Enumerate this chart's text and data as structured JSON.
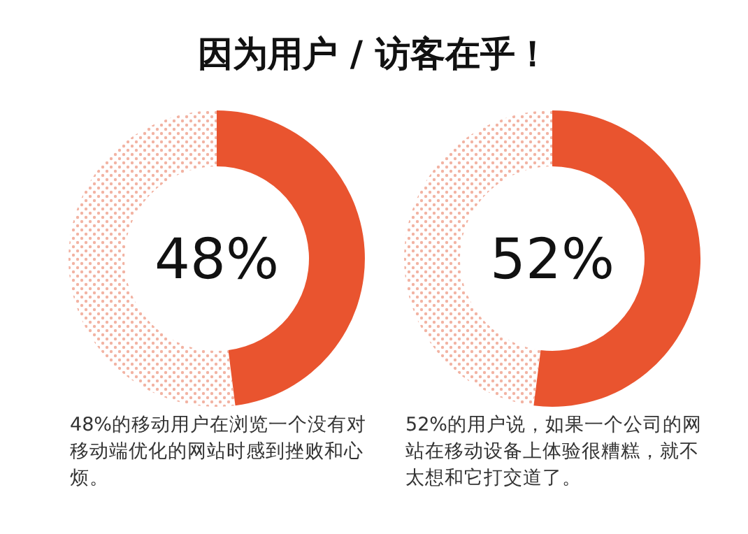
{
  "chart_data": [
    {
      "type": "donut",
      "title": "因为用户 / 访客在乎！",
      "categories": [
        null,
        null
      ],
      "values": [
        48,
        52
      ],
      "colors": [
        "#e9542f",
        "#f2b3a3"
      ],
      "value_labels": [
        "48%",
        null
      ],
      "annotations": [
        "48%的移动用户在浏览一个没有对移动端优化的网站时感到挫败和心烦。"
      ]
    },
    {
      "type": "donut",
      "categories": [
        null,
        null
      ],
      "values": [
        52,
        48
      ],
      "colors": [
        "#e9542f",
        "#f2b3a3"
      ],
      "value_labels": [
        "52%",
        null
      ],
      "annotations": [
        "52%的用户说，如果一个公司的网站在移动设备上体验很糟糕，就不太想和它打交道了。"
      ]
    }
  ]
}
